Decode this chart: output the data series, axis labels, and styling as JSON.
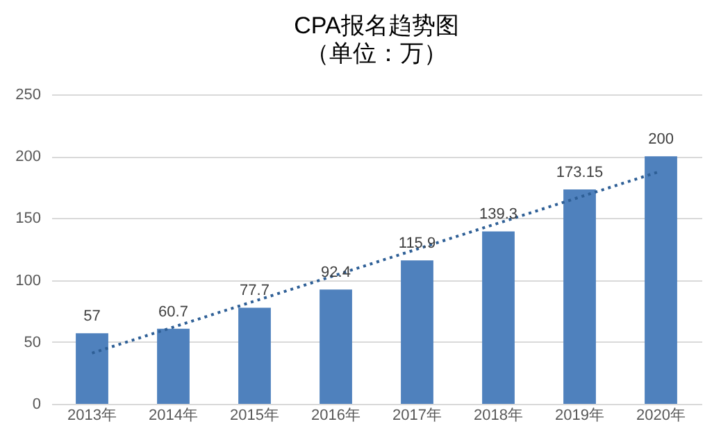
{
  "chart_data": {
    "type": "bar",
    "title": "CPA报名趋势图",
    "subtitle": "（单位：万）",
    "categories": [
      "2013年",
      "2014年",
      "2015年",
      "2016年",
      "2017年",
      "2018年",
      "2019年",
      "2020年"
    ],
    "series": [
      {
        "color": "#4f81bd",
        "values": [
          57,
          60.7,
          77.7,
          92.4,
          115.9,
          139.3,
          173.15,
          200
        ],
        "value_labels": [
          "57",
          "60.7",
          "77.7",
          "92.4",
          "115.9",
          "139.3",
          "173.15",
          "200"
        ]
      },
      {
        "type": "line",
        "color": "#2e5f96",
        "line_style": "dotted",
        "x": [
          "2013年",
          "2020年"
        ],
        "values": [
          41,
          188
        ]
      }
    ],
    "ylim": [
      0,
      250
    ],
    "yticks": [
      0,
      50,
      100,
      150,
      200,
      250
    ],
    "grid": "y"
  }
}
